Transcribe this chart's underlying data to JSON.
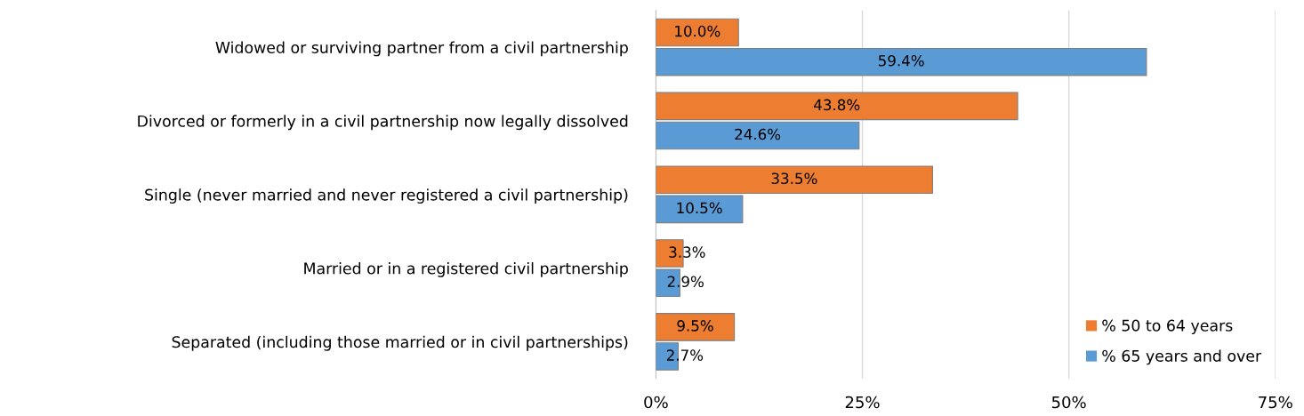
{
  "chart_data": {
    "type": "bar",
    "orientation": "horizontal",
    "categories": [
      "Widowed or surviving partner from a civil partnership",
      "Divorced or formerly in a civil partnership now legally dissolved",
      "Single (never married and never registered a civil partnership)",
      "Married or in a registered civil partnership",
      "Separated (including those married or in civil partnerships)"
    ],
    "series": [
      {
        "name": "% 50 to 64 years",
        "color": "#ed7d31",
        "values": [
          10.0,
          43.8,
          33.5,
          3.3,
          9.5
        ],
        "value_labels": [
          "10.0%",
          "43.8%",
          "33.5%",
          "3.3%",
          "9.5%"
        ]
      },
      {
        "name": "% 65 years and over",
        "color": "#5b9bd5",
        "values": [
          59.4,
          24.6,
          10.5,
          2.9,
          2.7
        ],
        "value_labels": [
          "59.4%",
          "24.6%",
          "10.5%",
          "2.9%",
          "2.7%"
        ]
      }
    ],
    "xlim": [
      0,
      75
    ],
    "xticks": [
      {
        "value": 0,
        "label": "0%"
      },
      {
        "value": 25,
        "label": "25%"
      },
      {
        "value": 50,
        "label": "50%"
      },
      {
        "value": 75,
        "label": "75%"
      }
    ],
    "grid": "x",
    "legend": "bottom right"
  }
}
